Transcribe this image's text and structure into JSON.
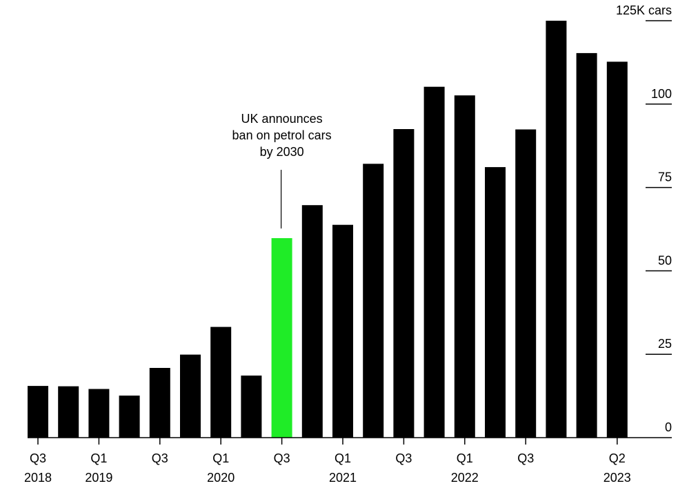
{
  "chart_data": {
    "type": "bar",
    "title": "",
    "xlabel": "",
    "ylabel": "",
    "y_unit_label": "125K cars",
    "ylim": [
      0,
      125
    ],
    "yticks": [
      0,
      25,
      50,
      75,
      100,
      125
    ],
    "ytick_labels": [
      "0",
      "25",
      "50",
      "75",
      "100",
      "125K cars"
    ],
    "grid": false,
    "categories": [
      "Q3 2018",
      "Q4 2018",
      "Q1 2019",
      "Q2 2019",
      "Q3 2019",
      "Q4 2019",
      "Q1 2020",
      "Q2 2020",
      "Q3 2020",
      "Q4 2020",
      "Q1 2021",
      "Q2 2021",
      "Q3 2021",
      "Q4 2021",
      "Q1 2022",
      "Q2 2022",
      "Q3 2022",
      "Q4 2022",
      "Q1 2023",
      "Q2 2023"
    ],
    "values": [
      15.5,
      15.4,
      14.6,
      12.6,
      20.9,
      24.9,
      33.2,
      18.6,
      59.8,
      69.7,
      63.8,
      82.1,
      92.5,
      105.2,
      102.6,
      81.1,
      92.4,
      125.0,
      115.3,
      112.7
    ],
    "highlight_index": 8,
    "colors": {
      "bar": "#000000",
      "highlight": "#1fec27",
      "axis": "#000000"
    },
    "x_tick_labels": [
      {
        "index": 0,
        "quarter": "Q3",
        "year": "2018"
      },
      {
        "index": 2,
        "quarter": "Q1",
        "year": "2019"
      },
      {
        "index": 4,
        "quarter": "Q3",
        "year": ""
      },
      {
        "index": 6,
        "quarter": "Q1",
        "year": "2020"
      },
      {
        "index": 8,
        "quarter": "Q3",
        "year": ""
      },
      {
        "index": 10,
        "quarter": "Q1",
        "year": "2021"
      },
      {
        "index": 12,
        "quarter": "Q3",
        "year": ""
      },
      {
        "index": 14,
        "quarter": "Q1",
        "year": "2022"
      },
      {
        "index": 16,
        "quarter": "Q3",
        "year": ""
      },
      {
        "index": 19,
        "quarter": "Q2",
        "year": "2023"
      }
    ],
    "annotation": {
      "index": 8,
      "lines": [
        "UK announces",
        "ban on petrol cars",
        "by 2030"
      ]
    }
  }
}
